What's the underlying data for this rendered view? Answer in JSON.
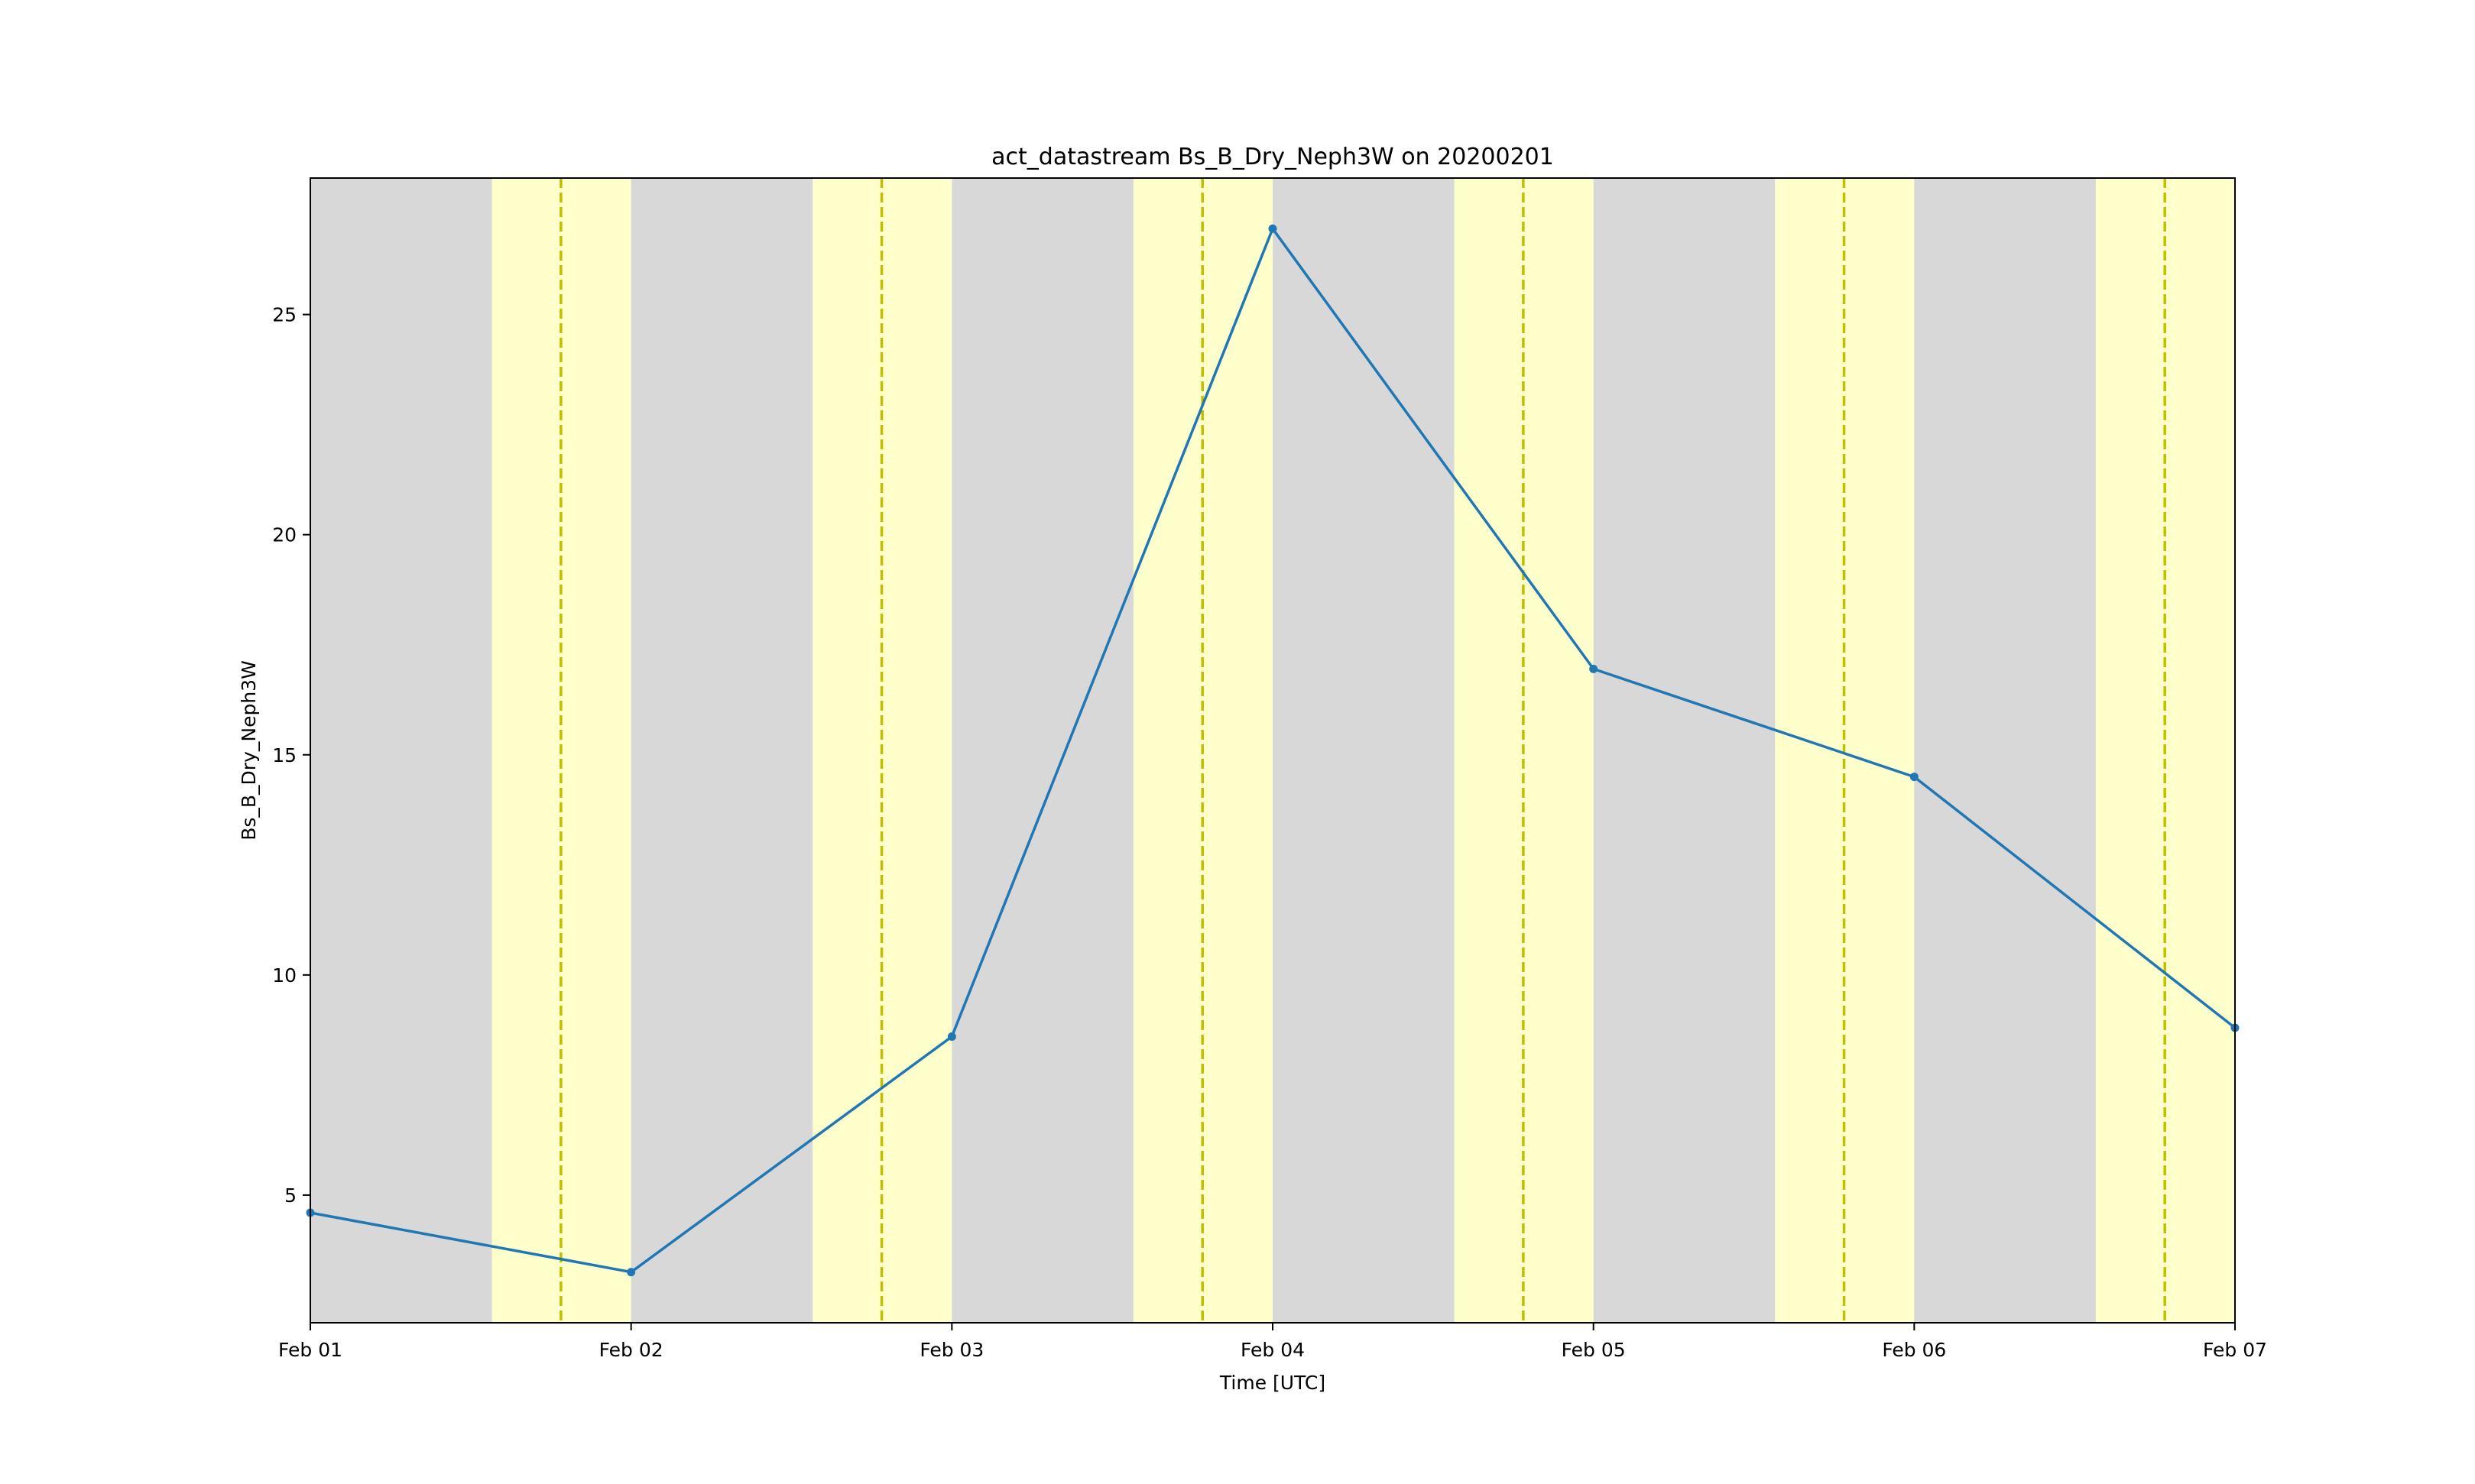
{
  "chart_data": {
    "type": "line",
    "title": "act_datastream Bs_B_Dry_Neph3W on 20200201",
    "xlabel": "Time [UTC]",
    "ylabel": "Bs_B_Dry_Neph3W",
    "x_tick_labels": [
      "Feb 01",
      "Feb 02",
      "Feb 03",
      "Feb 04",
      "Feb 05",
      "Feb 06",
      "Feb 07"
    ],
    "y_tick_labels": [
      "5",
      "10",
      "15",
      "20",
      "25"
    ],
    "y_ticks": [
      5,
      10,
      15,
      20,
      25
    ],
    "xlim": [
      "2020-02-01T00:00",
      "2020-02-07T00:00"
    ],
    "ylim": [
      2.1,
      28.1
    ],
    "series": [
      {
        "x": [
          "2020-02-01T00:00",
          "2020-02-02T00:00",
          "2020-02-03T00:00",
          "2020-02-04T00:00",
          "2020-02-05T00:00",
          "2020-02-06T00:00",
          "2020-02-07T00:00"
        ],
        "values": [
          4.6,
          3.25,
          8.6,
          26.95,
          16.95,
          14.5,
          8.8
        ],
        "color": "#1f77b4",
        "marker": "circle"
      }
    ],
    "daylight_periods": [
      {
        "start": "2020-02-01T13:35",
        "end": "2020-02-02T00:00",
        "solar_noon": "2020-02-01T18:45"
      },
      {
        "start": "2020-02-02T13:35",
        "end": "2020-02-03T00:00",
        "solar_noon": "2020-02-02T18:45"
      },
      {
        "start": "2020-02-03T13:35",
        "end": "2020-02-04T00:00",
        "solar_noon": "2020-02-03T18:45"
      },
      {
        "start": "2020-02-04T13:35",
        "end": "2020-02-05T00:00",
        "solar_noon": "2020-02-04T18:45"
      },
      {
        "start": "2020-02-05T13:35",
        "end": "2020-02-06T00:00",
        "solar_noon": "2020-02-05T18:45"
      },
      {
        "start": "2020-02-06T13:35",
        "end": "2020-02-07T00:00",
        "solar_noon": "2020-02-06T18:45"
      }
    ],
    "colors": {
      "night": "#d8d8d8",
      "day": "#ffffcc",
      "solar_noon_line": "#bfbf00",
      "line": "#1f77b4",
      "frame": "#000000"
    },
    "grid": false,
    "legend": "none"
  }
}
